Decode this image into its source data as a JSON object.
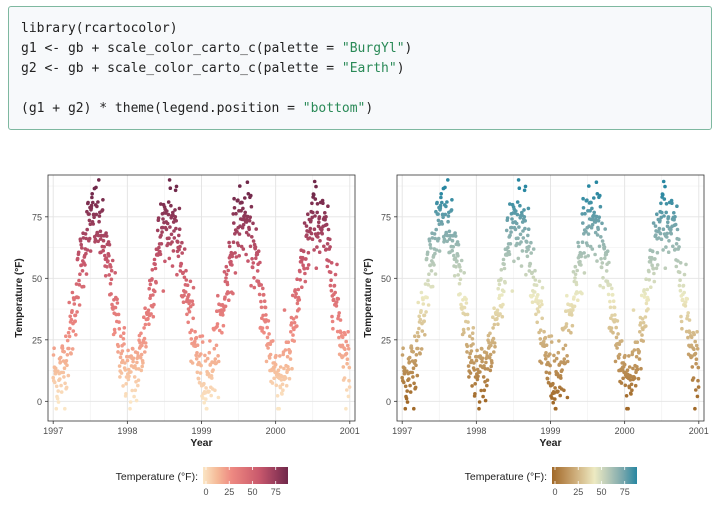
{
  "code": {
    "lines": [
      {
        "pre": "library(rcartocolor)",
        "str": "",
        "post": ""
      },
      {
        "pre": "g1 <- gb + scale_color_carto_c(palette = ",
        "str": "\"BurgYl\"",
        "post": ")"
      },
      {
        "pre": "g2 <- gb + scale_color_carto_c(palette = ",
        "str": "\"Earth\"",
        "post": ")"
      },
      {
        "pre": "",
        "str": "",
        "post": ""
      },
      {
        "pre": "(g1 + g2) * theme(legend.position = ",
        "str": "\"bottom\"",
        "post": ")"
      }
    ]
  },
  "plots": [
    {
      "palette": "BurgYl",
      "colors": [
        "#fbe6c5",
        "#f5ba98",
        "#ee8a82",
        "#dc7176",
        "#c8586c",
        "#9c3f5d",
        "#70284a"
      ],
      "legend_title": "Temperature (°F):",
      "legend_ticks": [
        "0",
        "25",
        "50",
        "75"
      ]
    },
    {
      "palette": "Earth",
      "colors": [
        "#a16928",
        "#bd925a",
        "#d6bd8d",
        "#edeac2",
        "#b5c8b8",
        "#79a7ac",
        "#2887a1"
      ],
      "legend_title": "Temperature (°F):",
      "legend_ticks": [
        "0",
        "25",
        "50",
        "75"
      ]
    }
  ],
  "chart_data": [
    {
      "type": "scatter",
      "title": "",
      "xlabel": "Year",
      "ylabel": "Temperature (°F)",
      "x_ticks": [
        "1997",
        "1998",
        "1999",
        "2000",
        "2001"
      ],
      "y_ticks": [
        "0",
        "25",
        "50",
        "75"
      ],
      "xlim": [
        1996.93,
        2001.07
      ],
      "ylim": [
        -8,
        92
      ],
      "grid": true,
      "legend_position": "bottom",
      "color_scale": "BurgYl",
      "seasonal_peaks": [
        {
          "x": 1997.55,
          "y": 85
        },
        {
          "x": 1998.55,
          "y": 85
        },
        {
          "x": 1999.55,
          "y": 90
        },
        {
          "x": 2000.55,
          "y": 82
        }
      ],
      "seasonal_lows": [
        {
          "x": 1997.02,
          "y": -2
        },
        {
          "x": 1998.02,
          "y": 10
        },
        {
          "x": 1999.02,
          "y": -3
        },
        {
          "x": 2000.02,
          "y": 12
        },
        {
          "x": 2000.98,
          "y": 0
        }
      ]
    },
    {
      "type": "scatter",
      "title": "",
      "xlabel": "Year",
      "ylabel": "Temperature (°F)",
      "x_ticks": [
        "1997",
        "1998",
        "1999",
        "2000",
        "2001"
      ],
      "y_ticks": [
        "0",
        "25",
        "50",
        "75"
      ],
      "xlim": [
        1996.93,
        2001.07
      ],
      "ylim": [
        -8,
        92
      ],
      "grid": true,
      "legend_position": "bottom",
      "color_scale": "Earth",
      "seasonal_peaks": [
        {
          "x": 1997.55,
          "y": 85
        },
        {
          "x": 1998.55,
          "y": 85
        },
        {
          "x": 1999.55,
          "y": 90
        },
        {
          "x": 2000.55,
          "y": 82
        }
      ],
      "seasonal_lows": [
        {
          "x": 1997.02,
          "y": -2
        },
        {
          "x": 1998.02,
          "y": 10
        },
        {
          "x": 1999.02,
          "y": -3
        },
        {
          "x": 2000.02,
          "y": 12
        },
        {
          "x": 2000.98,
          "y": 0
        }
      ]
    }
  ]
}
